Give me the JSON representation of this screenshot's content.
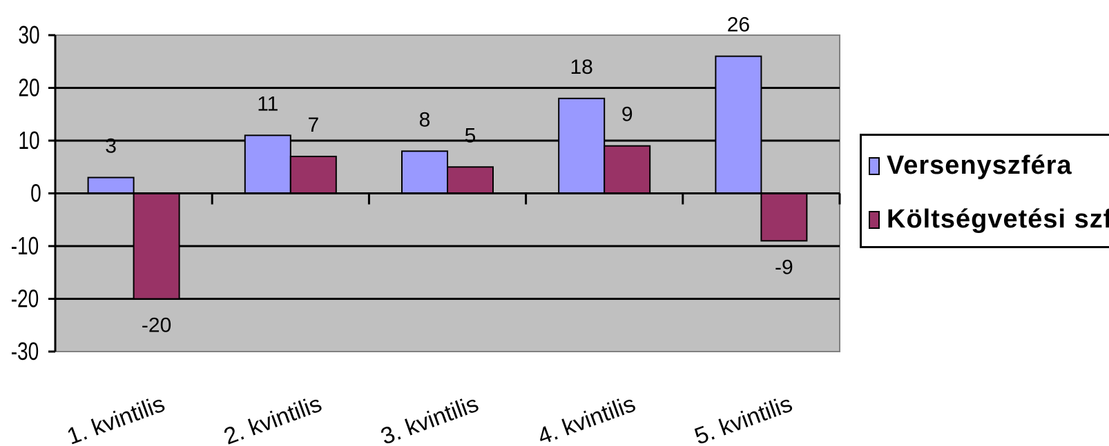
{
  "chart_data": {
    "type": "bar",
    "categories": [
      "1. kvintilis",
      "2. kvintilis",
      "3. kvintilis",
      "4. kvintilis",
      "5. kvintilis"
    ],
    "series": [
      {
        "name": "Versenyszféra",
        "values": [
          3,
          11,
          8,
          18,
          26
        ],
        "color": "#9999ff"
      },
      {
        "name": "Költségvetési szféra",
        "values": [
          -20,
          7,
          5,
          9,
          -9
        ],
        "color": "#993366"
      }
    ],
    "ylim": [
      -30,
      30
    ],
    "yticks": [
      "30",
      "20",
      "10",
      "0",
      "-10",
      "-20",
      "-30"
    ],
    "grid": true,
    "plot_background": "#c0c0c0",
    "legend_position": "right"
  }
}
